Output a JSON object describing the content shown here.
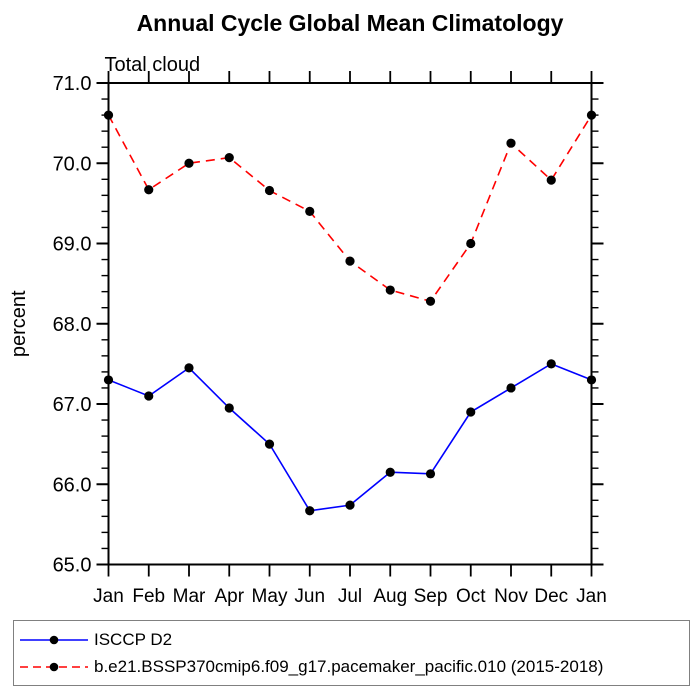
{
  "page": {
    "background": "#ffffff",
    "text_color": "#000000"
  },
  "chart_data": {
    "type": "line",
    "title": "Annual Cycle Global Mean Climatology",
    "subtitle": "Total cloud",
    "ylabel": "percent",
    "x_categories": [
      "Jan",
      "Feb",
      "Mar",
      "Apr",
      "May",
      "Jun",
      "Jul",
      "Aug",
      "Sep",
      "Oct",
      "Nov",
      "Dec",
      "Jan"
    ],
    "ylim": [
      65.0,
      71.0
    ],
    "y_major_step": 1.0,
    "y_minor_step": 0.2,
    "y_tick_decimals": 1,
    "grid": false,
    "legend_position": "bottom",
    "frame_color": "#000000",
    "marker": "filled-circle",
    "marker_color": "#000000",
    "series": [
      {
        "name": "ISCCP D2",
        "color": "#0000ff",
        "line_style": "solid",
        "values": [
          67.3,
          67.1,
          67.45,
          66.95,
          66.5,
          65.67,
          65.74,
          66.15,
          66.13,
          66.9,
          67.2,
          67.5,
          67.3
        ]
      },
      {
        "name": "b.e21.BSSP370cmip6.f09_g17.pacemaker_pacific.010 (2015-2018)",
        "color": "#ff0000",
        "line_style": "dashed",
        "values": [
          70.6,
          69.67,
          70.0,
          70.07,
          69.66,
          69.4,
          68.78,
          68.42,
          68.28,
          69.0,
          70.25,
          69.79,
          70.6
        ]
      }
    ]
  }
}
